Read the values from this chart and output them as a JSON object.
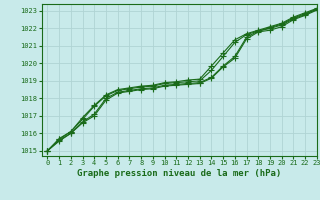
{
  "title": "Graphe pression niveau de la mer (hPa)",
  "bg_color": "#c8eaea",
  "grid_color": "#b0d4d4",
  "line_color": "#1a6b1a",
  "xlim": [
    -0.5,
    23
  ],
  "ylim": [
    1014.7,
    1023.4
  ],
  "yticks": [
    1015,
    1016,
    1017,
    1018,
    1019,
    1020,
    1021,
    1022,
    1023
  ],
  "xticks": [
    0,
    1,
    2,
    3,
    4,
    5,
    6,
    7,
    8,
    9,
    10,
    11,
    12,
    13,
    14,
    15,
    16,
    17,
    18,
    19,
    20,
    21,
    22,
    23
  ],
  "series": [
    [
      1015.0,
      1015.55,
      1016.0,
      1016.6,
      1017.0,
      1017.9,
      1018.3,
      1018.4,
      1018.5,
      1018.55,
      1018.7,
      1018.75,
      1018.8,
      1018.85,
      1019.15,
      1019.8,
      1020.3,
      1021.4,
      1021.8,
      1021.9,
      1022.1,
      1022.5,
      1022.75,
      1023.05
    ],
    [
      1015.0,
      1015.6,
      1016.0,
      1016.65,
      1017.1,
      1018.0,
      1018.35,
      1018.45,
      1018.55,
      1018.6,
      1018.75,
      1018.8,
      1018.85,
      1018.9,
      1019.2,
      1019.85,
      1020.4,
      1021.5,
      1021.85,
      1022.0,
      1022.2,
      1022.55,
      1022.8,
      1023.1
    ],
    [
      1015.0,
      1015.65,
      1016.1,
      1016.8,
      1017.55,
      1018.15,
      1018.45,
      1018.55,
      1018.65,
      1018.7,
      1018.85,
      1018.9,
      1018.95,
      1019.0,
      1019.6,
      1020.4,
      1021.2,
      1021.65,
      1021.85,
      1022.05,
      1022.25,
      1022.6,
      1022.85,
      1023.1
    ],
    [
      1015.0,
      1015.7,
      1016.1,
      1016.9,
      1017.6,
      1018.2,
      1018.5,
      1018.6,
      1018.7,
      1018.75,
      1018.9,
      1018.95,
      1019.05,
      1019.1,
      1019.85,
      1020.6,
      1021.35,
      1021.7,
      1021.9,
      1022.1,
      1022.3,
      1022.65,
      1022.9,
      1023.15
    ]
  ],
  "marker_style": "+",
  "marker_size": 4,
  "title_fontsize": 6.5
}
